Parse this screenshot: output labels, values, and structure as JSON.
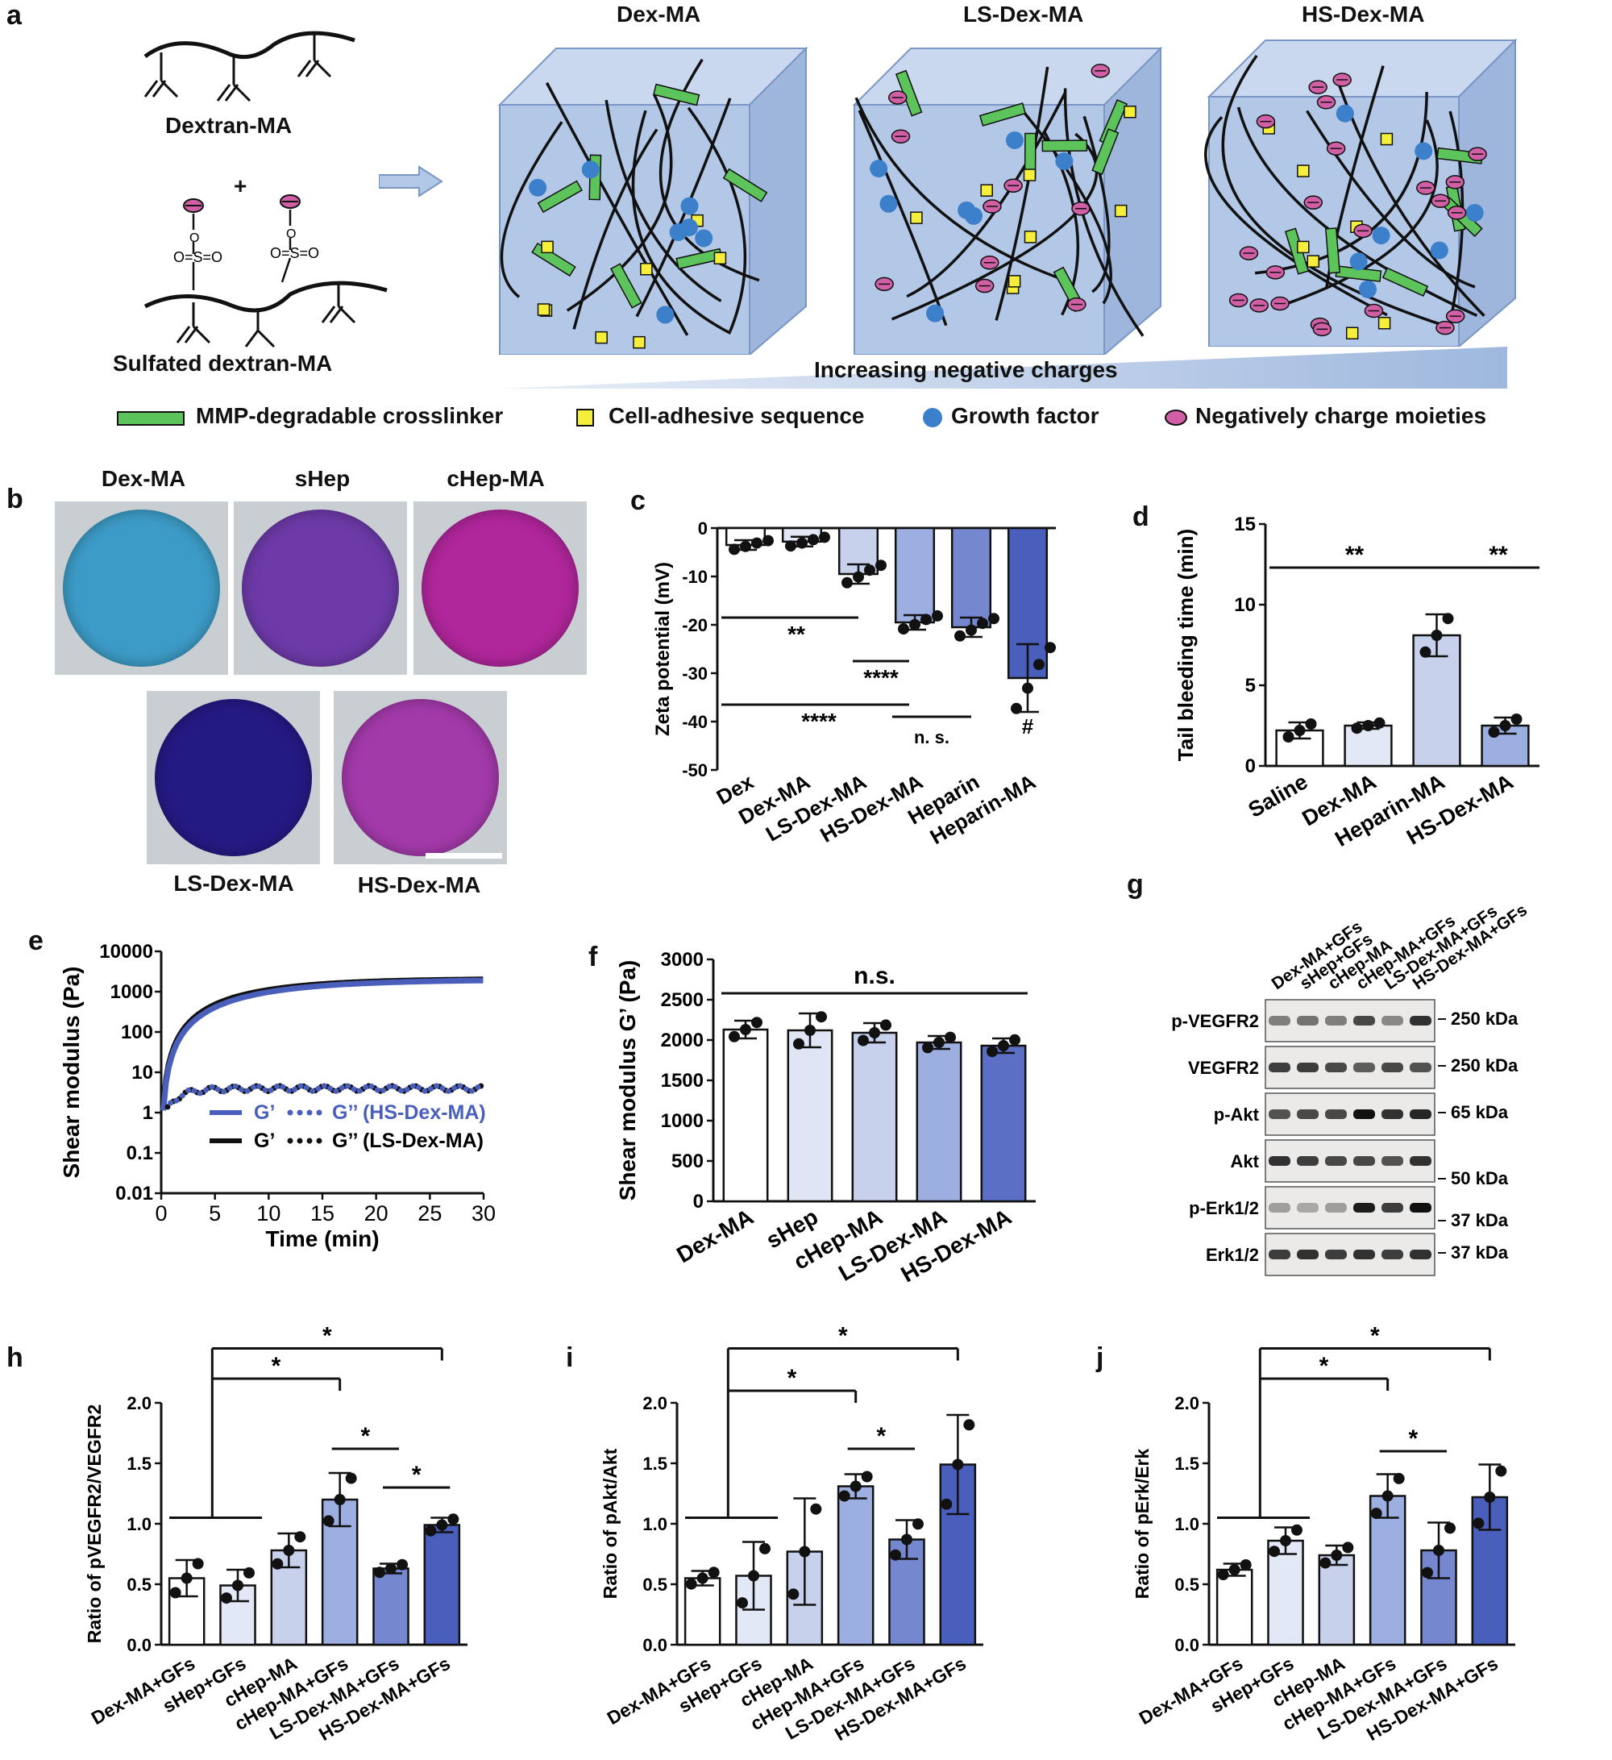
{
  "panel_letters": {
    "a": "a",
    "b": "b",
    "c": "c",
    "d": "d",
    "e": "e",
    "f": "f",
    "g": "g",
    "h": "h",
    "i": "i",
    "j": "j"
  },
  "panel_a": {
    "dextran_label": "Dextran-MA",
    "plus": "+",
    "sulfated_label": "Sulfated dextran-MA",
    "sulfate_text": "O=S=O",
    "cube_titles": [
      "Dex-MA",
      "LS-Dex-MA",
      "HS-Dex-MA"
    ],
    "gradient_label": "Increasing negative charges",
    "legend": [
      "MMP-degradable crosslinker",
      "Cell-adhesive sequence",
      "Growth factor",
      "Negatively charge moieties"
    ],
    "colors": {
      "cube_face": "#b3c8e6",
      "crosslinker": "#5cc45a",
      "adhesive": "#f5ee3a",
      "growth_factor": "#3c7fcb",
      "charge": "#d15fa6"
    }
  },
  "panel_b": {
    "dishes": [
      {
        "label": "Dex-MA",
        "color": "#3d9cc7"
      },
      {
        "label": "sHep",
        "color": "#6d3aa8"
      },
      {
        "label": "cHep-MA",
        "color": "#b0269b"
      },
      {
        "label": "LS-Dex-MA",
        "color": "#241a84"
      },
      {
        "label": "HS-Dex-MA",
        "color": "#a33aaa"
      }
    ]
  },
  "panel_c": {
    "chart_data": {
      "type": "bar",
      "ylabel": "Zeta potential (mV)",
      "ylim": [
        -50,
        0
      ],
      "yticks": [
        "0",
        "-10",
        "-20",
        "-30",
        "-40",
        "-50"
      ],
      "categories": [
        "Dex",
        "Dex-MA",
        "LS-Dex-MA",
        "HS-Dex-MA",
        "Heparin",
        "Heparin-MA"
      ],
      "values": [
        -3.5,
        -2.8,
        -9.5,
        -19.5,
        -20.5,
        -31
      ],
      "errors": [
        1,
        1,
        2,
        1.5,
        2,
        7
      ],
      "annotations": [
        "**",
        "****",
        "****",
        "n. s.",
        "#"
      ]
    }
  },
  "panel_d": {
    "chart_data": {
      "type": "bar",
      "ylabel": "Tail bleeding time (min)",
      "ylim": [
        0,
        15
      ],
      "yticks": [
        "0",
        "5",
        "10",
        "15"
      ],
      "categories": [
        "Saline",
        "Dex-MA",
        "Heparin-MA",
        "HS-Dex-MA"
      ],
      "values": [
        2.2,
        2.5,
        8.1,
        2.5
      ],
      "errors": [
        0.5,
        0.2,
        1.3,
        0.5
      ],
      "annotations": [
        "**",
        "**"
      ]
    }
  },
  "panel_e": {
    "chart_data": {
      "type": "line",
      "xlabel": "Time  (min)",
      "ylabel": "Shear modulus (Pa)",
      "xticks": [
        "0",
        "5",
        "10",
        "15",
        "20",
        "25",
        "30"
      ],
      "yticks": [
        "10000",
        "1000",
        "100",
        "10",
        "1",
        "0.1",
        "0.01"
      ],
      "legend": [
        "G’",
        "G’’ (HS-Dex-MA)",
        "G’",
        "G’’ (LS-Dex-MA)"
      ],
      "series": [
        {
          "name": "G’ HS-Dex-MA",
          "final": 2000
        },
        {
          "name": "G’’ HS-Dex-MA",
          "final": 4
        },
        {
          "name": "G’ LS-Dex-MA",
          "final": 2100
        },
        {
          "name": "G’’ LS-Dex-MA",
          "final": 4
        }
      ]
    }
  },
  "panel_f": {
    "chart_data": {
      "type": "bar",
      "ylabel": "Shear modulus G’ (Pa)",
      "ylim": [
        0,
        3000
      ],
      "yticks": [
        "0",
        "500",
        "1000",
        "1500",
        "2000",
        "2500",
        "3000"
      ],
      "categories": [
        "Dex-MA",
        "sHep",
        "cHep-MA",
        "LS-Dex-MA",
        "HS-Dex-MA"
      ],
      "values": [
        2130,
        2120,
        2090,
        1970,
        1930
      ],
      "errors": [
        110,
        210,
        120,
        80,
        90
      ],
      "annotations": [
        "n.s."
      ]
    }
  },
  "panel_g": {
    "lanes": [
      "Dex-MA+GFs",
      "sHep+GFs",
      "cHep-MA",
      "cHep-MA+GFs",
      "LS-Dex-MA+GFs",
      "HS-Dex-MA+GFs"
    ],
    "rows": [
      {
        "label": "p-VEGFR2",
        "marker": "250 kDa"
      },
      {
        "label": "VEGFR2",
        "marker": "250 kDa"
      },
      {
        "label": "p-Akt",
        "marker": "65 kDa"
      },
      {
        "label": "Akt",
        "marker": "50 kDa"
      },
      {
        "label": "p-Erk1/2",
        "marker": "37 kDa"
      },
      {
        "label": "Erk1/2",
        "marker": "37 kDa"
      }
    ]
  },
  "panel_h": {
    "chart_data": {
      "type": "bar",
      "ylabel": "Ratio of pVEGFR2/VEGFR2",
      "ylim": [
        0,
        2.0
      ],
      "yticks": [
        "0.0",
        "0.5",
        "1.0",
        "1.5",
        "2.0"
      ],
      "categories": [
        "Dex-MA+GFs",
        "sHep+GFs",
        "cHep-MA",
        "cHep-MA+GFs",
        "LS-Dex-MA+GFs",
        "HS-Dex-MA+GFs"
      ],
      "values": [
        0.55,
        0.49,
        0.78,
        1.2,
        0.63,
        0.99
      ],
      "errors": [
        0.15,
        0.13,
        0.14,
        0.22,
        0.04,
        0.06
      ],
      "annotations": [
        "*",
        "*",
        "*",
        "*"
      ]
    }
  },
  "panel_i": {
    "chart_data": {
      "type": "bar",
      "ylabel": "Ratio of pAkt/Akt",
      "ylim": [
        0,
        2.0
      ],
      "yticks": [
        "0.0",
        "0.5",
        "1.0",
        "1.5",
        "2.0"
      ],
      "categories": [
        "Dex-MA+GFs",
        "sHep+GFs",
        "cHep-MA",
        "cHep-MA+GFs",
        "LS-Dex-MA+GFs",
        "HS-Dex-MA+GFs"
      ],
      "values": [
        0.55,
        0.57,
        0.77,
        1.31,
        0.87,
        1.49
      ],
      "errors": [
        0.06,
        0.28,
        0.44,
        0.1,
        0.16,
        0.41
      ],
      "annotations": [
        "*",
        "*",
        "*"
      ]
    }
  },
  "panel_j": {
    "chart_data": {
      "type": "bar",
      "ylabel": "Ratio of pErk/Erk",
      "ylim": [
        0,
        2.0
      ],
      "yticks": [
        "0.0",
        "0.5",
        "1.0",
        "1.5",
        "2.0"
      ],
      "categories": [
        "Dex-MA+GFs",
        "sHep+GFs",
        "cHep-MA",
        "cHep-MA+GFs",
        "LS-Dex-MA+GFs",
        "HS-Dex-MA+GFs"
      ],
      "values": [
        0.62,
        0.86,
        0.74,
        1.23,
        0.78,
        1.22
      ],
      "errors": [
        0.05,
        0.11,
        0.08,
        0.18,
        0.23,
        0.27
      ],
      "annotations": [
        "*",
        "*",
        "*"
      ]
    }
  },
  "bar_colors": [
    "#ffffff",
    "#e3e8f6",
    "#c7d1ec",
    "#9daee0",
    "#7588cf",
    "#4a5fbb"
  ]
}
